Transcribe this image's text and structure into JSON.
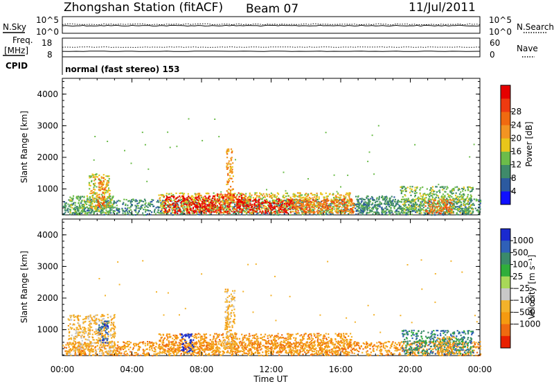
{
  "header": {
    "title": "Zhongshan Station (fitACF)",
    "beam": "Beam 07",
    "date": "11/Jul/2011"
  },
  "strip_panels": {
    "noise": {
      "left_label": "N.Sky",
      "right_label": "N.Search",
      "left_ticks": [
        "10^5",
        "10^0"
      ],
      "right_ticks": [
        "10^5",
        "10^0"
      ]
    },
    "freq": {
      "left_label_1": "Freq.",
      "left_label_2": "[MHz]",
      "right_label": "Nave",
      "left_ticks": [
        "18",
        "8"
      ],
      "right_ticks": [
        "60",
        "0"
      ]
    },
    "cpid": {
      "label": "CPID",
      "text": "normal (fast stereo) 153"
    }
  },
  "chart_data": [
    {
      "type": "heatmap",
      "name": "power",
      "ylabel": "Slant Range [km]",
      "ylim": [
        180,
        4500
      ],
      "yticks": [
        "1000",
        "2000",
        "3000",
        "4000"
      ],
      "xlim": [
        0,
        24
      ],
      "colorbar": {
        "label": "Power [dB]",
        "ticks": [
          "4",
          "8",
          "12",
          "16",
          "20",
          "24",
          "28"
        ],
        "colors": [
          "#1010ff",
          "#2c5aa0",
          "#3f8a6a",
          "#6cbc4a",
          "#e8c61a",
          "#f29422",
          "#f06a10",
          "#ee3a10",
          "#e60000"
        ]
      },
      "regions": [
        {
          "t0": 0.0,
          "t1": 24.0,
          "r0": 200,
          "r1": 700,
          "level": 2
        },
        {
          "t0": 0.4,
          "t1": 2.9,
          "r0": 250,
          "r1": 800,
          "level": 3
        },
        {
          "t0": 1.5,
          "t1": 2.7,
          "r0": 400,
          "r1": 1500,
          "level": 4
        },
        {
          "t0": 2.0,
          "t1": 2.4,
          "r0": 450,
          "r1": 1400,
          "level": 6
        },
        {
          "t0": 5.5,
          "t1": 16.6,
          "r0": 250,
          "r1": 900,
          "level": 4
        },
        {
          "t0": 5.8,
          "t1": 8.8,
          "r0": 250,
          "r1": 800,
          "level": 8
        },
        {
          "t0": 8.8,
          "t1": 10.5,
          "r0": 250,
          "r1": 900,
          "level": 7
        },
        {
          "t0": 10.0,
          "t1": 13.2,
          "r0": 250,
          "r1": 700,
          "level": 8
        },
        {
          "t0": 13.2,
          "t1": 16.8,
          "r0": 250,
          "r1": 700,
          "level": 6
        },
        {
          "t0": 9.4,
          "t1": 9.8,
          "r0": 500,
          "r1": 2300,
          "level": 5
        },
        {
          "t0": 16.8,
          "t1": 19.3,
          "r0": 250,
          "r1": 800,
          "level": 2
        },
        {
          "t0": 19.4,
          "t1": 23.6,
          "r0": 250,
          "r1": 1100,
          "level": 3
        },
        {
          "t0": 20.8,
          "t1": 22.4,
          "r0": 250,
          "r1": 700,
          "level": 6
        }
      ]
    },
    {
      "type": "heatmap",
      "name": "velocity",
      "ylabel": "Slant Range [km]",
      "ylim": [
        180,
        4500
      ],
      "yticks": [
        "1000",
        "2000",
        "3000",
        "4000"
      ],
      "xlim": [
        0,
        24
      ],
      "xticks": [
        "00:00",
        "04:00",
        "08:00",
        "12:00",
        "16:00",
        "20:00",
        "00:00"
      ],
      "xlabel": "Time UT",
      "colorbar": {
        "label": "Velocity [m s⁻¹]",
        "ticks": [
          "1000",
          "500",
          "100",
          "25",
          "−25",
          "−100",
          "−500",
          "−1000"
        ],
        "colors": [
          "#1a2ad0",
          "#2f60b8",
          "#3a8a6a",
          "#2fae3a",
          "#a8d858",
          "#c8c8c8",
          "#f3b22a",
          "#f59a10",
          "#ef6a10",
          "#e82000"
        ]
      },
      "regions": [
        {
          "t0": 0.0,
          "t1": 24.0,
          "r0": 200,
          "r1": 650,
          "level": 7
        },
        {
          "t0": 0.3,
          "t1": 3.0,
          "r0": 250,
          "r1": 1500,
          "level": 6
        },
        {
          "t0": 2.0,
          "t1": 2.6,
          "r0": 600,
          "r1": 1300,
          "level": 1
        },
        {
          "t0": 5.5,
          "t1": 16.6,
          "r0": 250,
          "r1": 900,
          "level": 7
        },
        {
          "t0": 6.8,
          "t1": 7.5,
          "r0": 300,
          "r1": 900,
          "level": 0
        },
        {
          "t0": 9.3,
          "t1": 9.9,
          "r0": 400,
          "r1": 2300,
          "level": 6
        },
        {
          "t0": 19.5,
          "t1": 23.6,
          "r0": 250,
          "r1": 1000,
          "level": 2
        },
        {
          "t0": 21.5,
          "t1": 22.5,
          "r0": 250,
          "r1": 800,
          "level": 7
        }
      ]
    }
  ]
}
